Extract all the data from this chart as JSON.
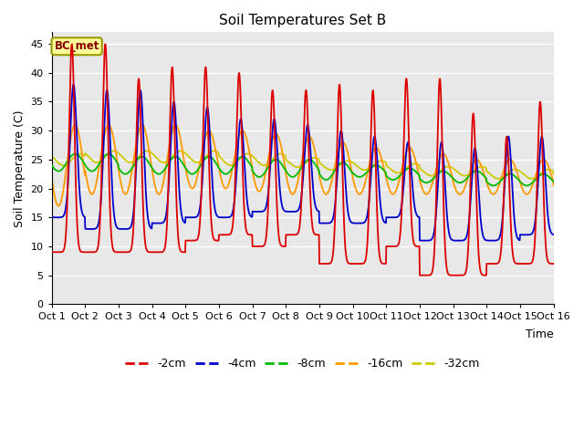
{
  "title": "Soil Temperatures Set B",
  "xlabel": "Time",
  "ylabel": "Soil Temperature (C)",
  "annotation": "BC_met",
  "legend_labels": [
    "-2cm",
    "-4cm",
    "-8cm",
    "-16cm",
    "-32cm"
  ],
  "line_colors": [
    "#dd0000",
    "#0000cc",
    "#00bb00",
    "#ff9900",
    "#cccc00"
  ],
  "x_tick_labels": [
    "Oct 1",
    "Oct 2",
    "Oct 3",
    "Oct 4",
    "Oct 5",
    "Oct 6",
    "Oct 7",
    "Oct 8",
    "Oct 9",
    "Oct 10",
    "Oct 11",
    "Oct 12",
    "Oct 13",
    "Oct 14",
    "Oct 15",
    "Oct 16"
  ],
  "ylim": [
    0,
    47
  ],
  "yticks": [
    0,
    5,
    10,
    15,
    20,
    25,
    30,
    35,
    40,
    45
  ],
  "bg_color": "#e8e8e8",
  "fig_bg": "#ffffff",
  "grid_color": "#ffffff",
  "days": 15,
  "annotation_facecolor": "#ffff99",
  "annotation_edgecolor": "#999900",
  "annotation_textcolor": "#880000"
}
